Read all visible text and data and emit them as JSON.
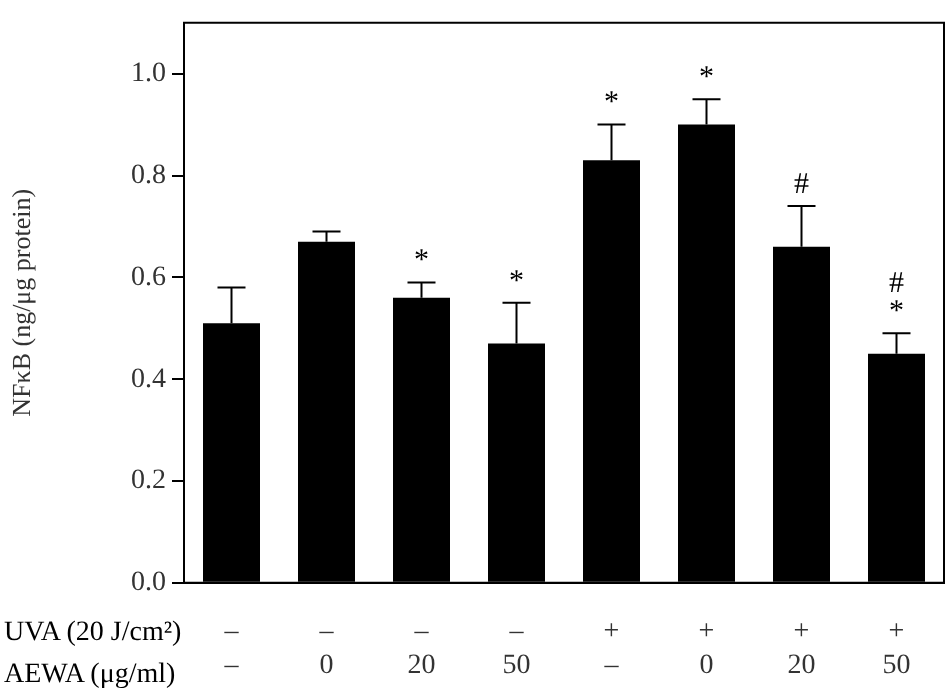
{
  "chart_data": {
    "type": "bar",
    "ylabel": "NFκB (ng/μg protein)",
    "categories": [
      "–\n–",
      "–\n0",
      "–\n20",
      "–\n50",
      "+\n–",
      "+\n0",
      "+\n20",
      "+\n50"
    ],
    "values": [
      0.51,
      0.67,
      0.56,
      0.47,
      0.83,
      0.9,
      0.66,
      0.45
    ],
    "errors": [
      [
        0.51,
        0.58
      ],
      [
        0.67,
        0.69
      ],
      [
        0.56,
        0.59
      ],
      [
        0.47,
        0.55
      ],
      [
        0.83,
        0.9
      ],
      [
        0.9,
        0.95
      ],
      [
        0.66,
        0.74
      ],
      [
        0.45,
        0.49
      ]
    ],
    "color": "#000000",
    "ylim": [
      0,
      1.1
    ],
    "yticks": [
      {
        "value": 0,
        "label": "0.0"
      },
      {
        "value": 0.2,
        "label": "0.2"
      },
      {
        "value": 0.4,
        "label": "0.4"
      },
      {
        "value": 0.6,
        "label": "0.6"
      },
      {
        "value": 0.8,
        "label": "0.8"
      },
      {
        "value": 1.0,
        "label": "1.0"
      }
    ],
    "grid": false,
    "legend": false,
    "annotations": [
      "UVA (20 J/cm²)",
      "AEWA (μg/ml)",
      {
        "text": "*",
        "x": "–\n20",
        "y": 0.59
      },
      {
        "text": "*",
        "x": "–\n50",
        "y": 0.55
      },
      {
        "text": "*",
        "x": "+\n–",
        "y": 0.9
      },
      {
        "text": "*",
        "x": "+\n0",
        "y": 0.95
      },
      {
        "text": "#",
        "x": "+\n20",
        "y": 0.74
      },
      {
        "text": "*",
        "x": "+\n50",
        "y": 0.49
      },
      {
        "text": "#",
        "x": "+\n50",
        "y": 0.49
      }
    ]
  }
}
